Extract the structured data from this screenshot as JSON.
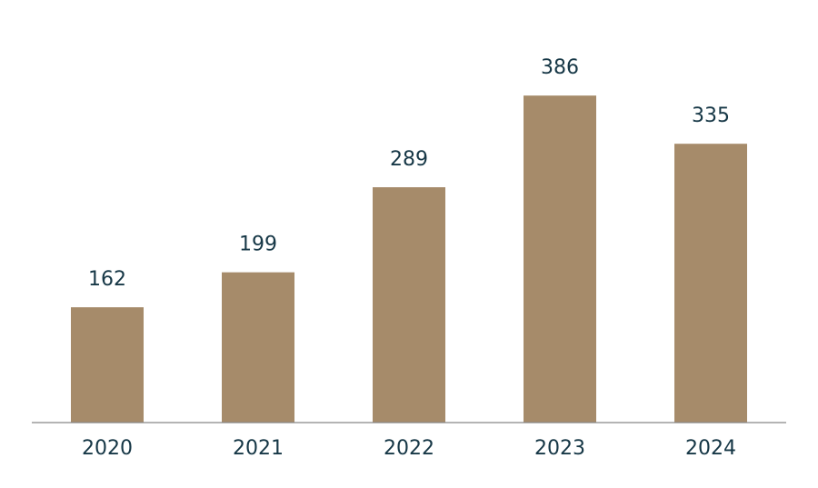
{
  "chart_data": {
    "type": "bar",
    "categories": [
      "2020",
      "2021",
      "2022",
      "2023",
      "2024"
    ],
    "values": [
      162,
      199,
      289,
      386,
      335
    ],
    "color": "#a68b6a",
    "ylim": [
      40,
      440
    ]
  }
}
